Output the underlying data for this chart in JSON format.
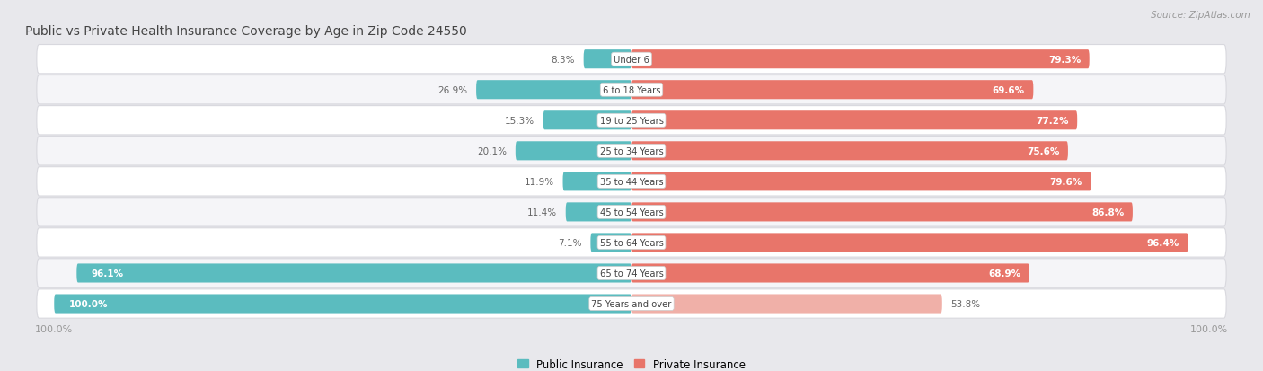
{
  "title": "Public vs Private Health Insurance Coverage by Age in Zip Code 24550",
  "source": "Source: ZipAtlas.com",
  "categories": [
    "Under 6",
    "6 to 18 Years",
    "19 to 25 Years",
    "25 to 34 Years",
    "35 to 44 Years",
    "45 to 54 Years",
    "55 to 64 Years",
    "65 to 74 Years",
    "75 Years and over"
  ],
  "public_values": [
    8.3,
    26.9,
    15.3,
    20.1,
    11.9,
    11.4,
    7.1,
    96.1,
    100.0
  ],
  "private_values": [
    79.3,
    69.6,
    77.2,
    75.6,
    79.6,
    86.8,
    96.4,
    68.9,
    53.8
  ],
  "public_color": "#5bbcbf",
  "public_color_light": "#a8d9da",
  "private_color": "#e8756a",
  "private_color_light": "#f0b0a8",
  "bg_color": "#e8e8ec",
  "row_color_even": "#ffffff",
  "row_color_odd": "#f5f5f8",
  "row_border_color": "#d8d8de",
  "label_white": "#ffffff",
  "label_dark": "#666666",
  "label_center": "#444444",
  "title_color": "#444444",
  "source_color": "#999999",
  "axis_label_color": "#999999",
  "figsize": [
    14.06,
    4.14
  ],
  "dpi": 100
}
